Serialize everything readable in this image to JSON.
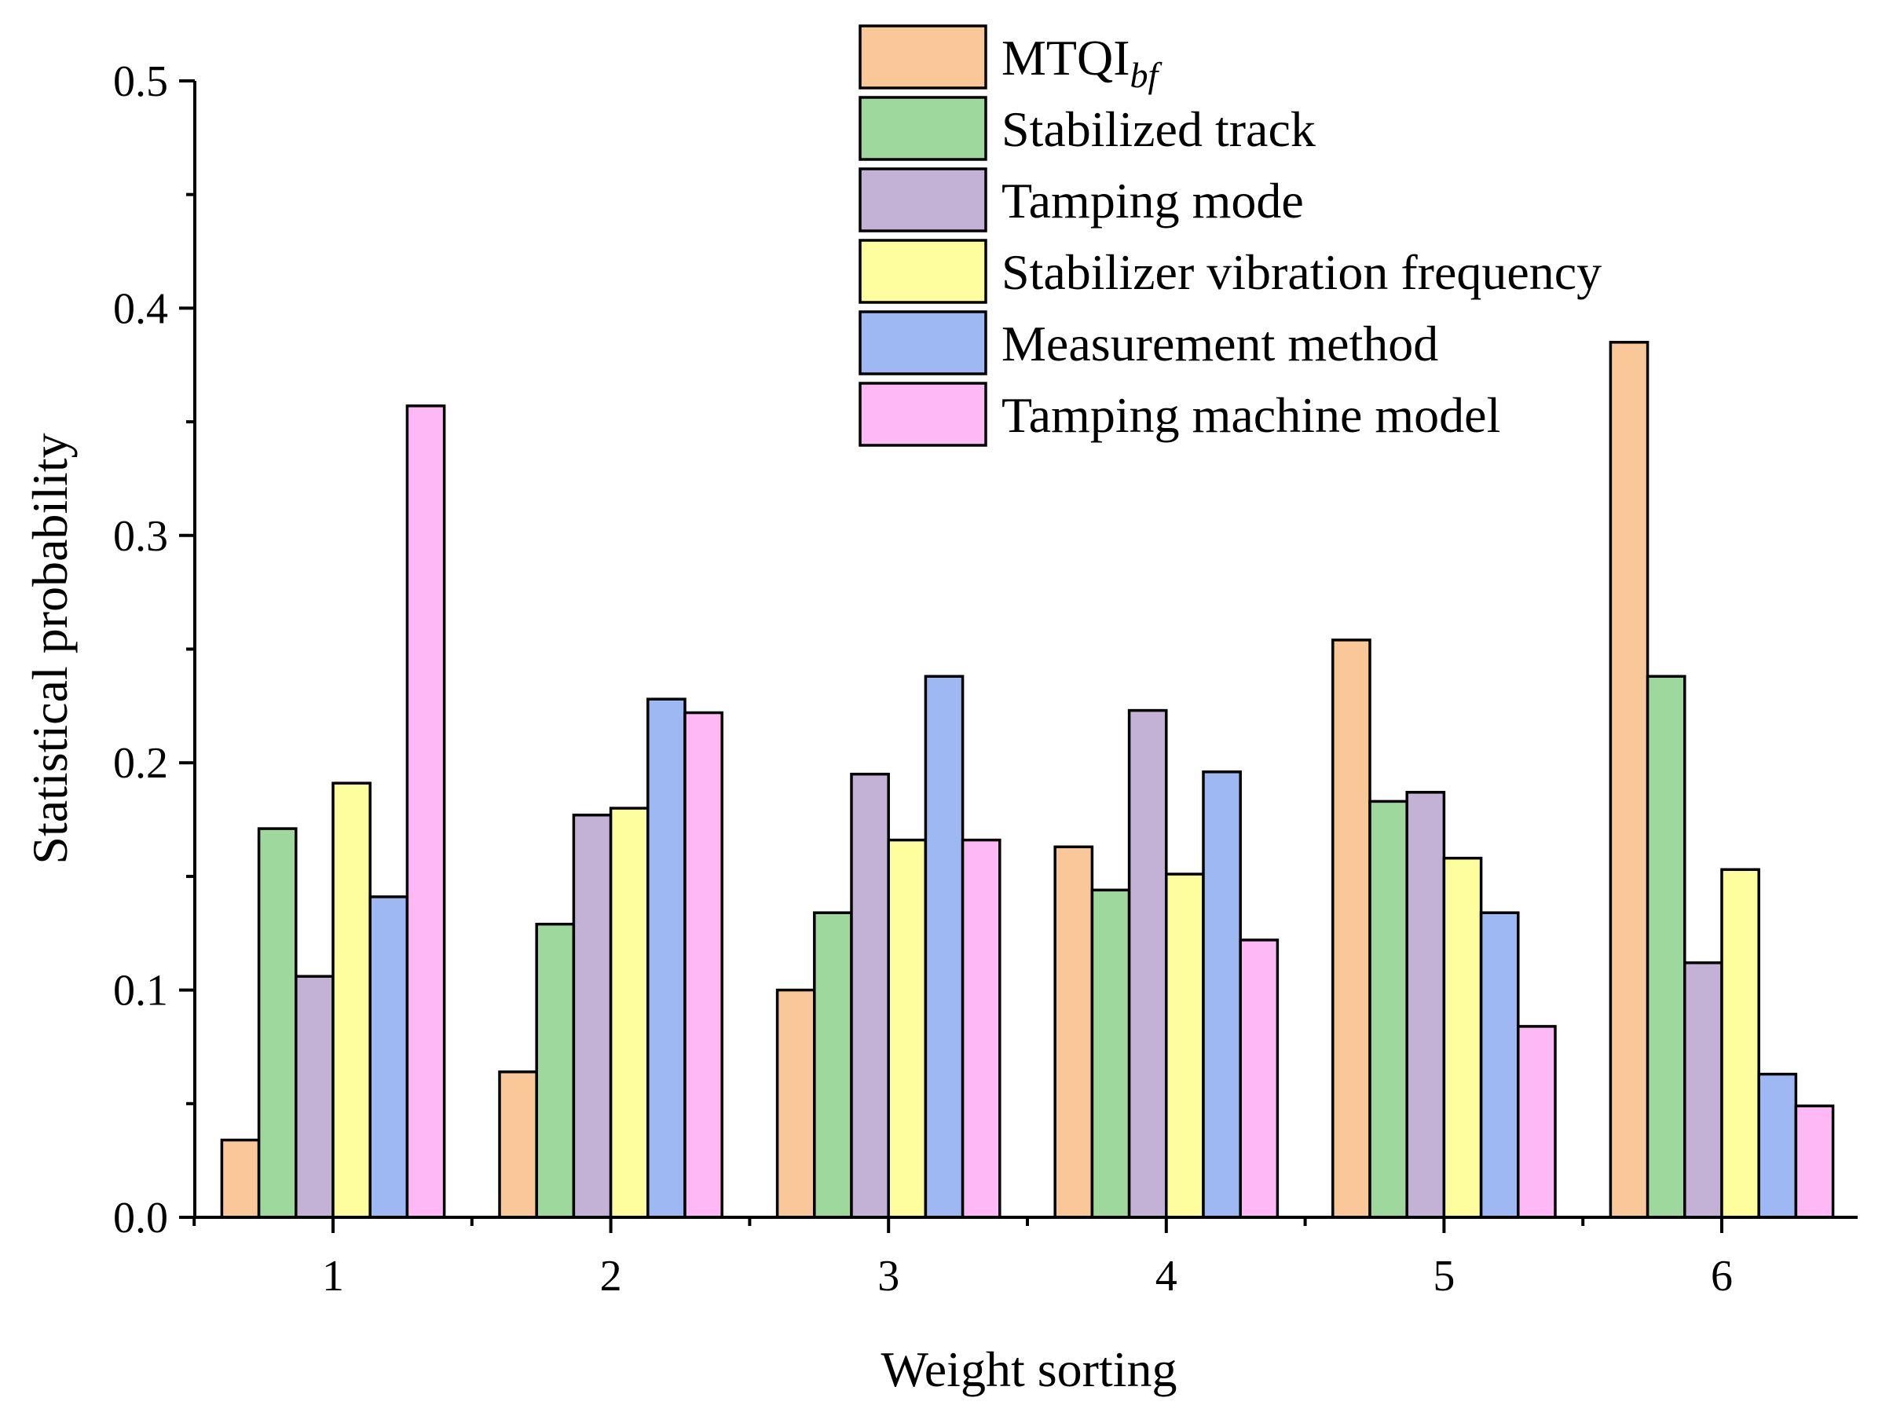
{
  "chart_data": {
    "type": "bar",
    "title": "",
    "xlabel": "Weight sorting",
    "ylabel": "Statistical probability",
    "categories": [
      "1",
      "2",
      "3",
      "4",
      "5",
      "6"
    ],
    "ylim": [
      0,
      0.5
    ],
    "yticks": [
      0.0,
      0.1,
      0.2,
      0.3,
      0.4,
      0.5
    ],
    "ytick_labels": [
      "0.0",
      "0.1",
      "0.2",
      "0.3",
      "0.4",
      "0.5"
    ],
    "grid": false,
    "legend_position": "top-right",
    "series": [
      {
        "name": "MTQI",
        "name_subscript": "bf",
        "color": "#FAC898",
        "values": [
          0.034,
          0.064,
          0.1,
          0.163,
          0.254,
          0.385
        ]
      },
      {
        "name": "Stabilized track",
        "color": "#9ED89D",
        "values": [
          0.171,
          0.129,
          0.134,
          0.144,
          0.183,
          0.238
        ]
      },
      {
        "name": "Tamping mode",
        "color": "#C3B2D6",
        "values": [
          0.106,
          0.177,
          0.195,
          0.223,
          0.187,
          0.112
        ]
      },
      {
        "name": "Stabilizer vibration frequency",
        "color": "#FEFE9E",
        "values": [
          0.191,
          0.18,
          0.166,
          0.151,
          0.158,
          0.153
        ]
      },
      {
        "name": "Measurement method",
        "color": "#9DB8F2",
        "values": [
          0.141,
          0.228,
          0.238,
          0.196,
          0.134,
          0.063
        ]
      },
      {
        "name": "Tamping machine model",
        "color": "#FEB8F6",
        "values": [
          0.357,
          0.222,
          0.166,
          0.122,
          0.084,
          0.049
        ]
      }
    ]
  }
}
